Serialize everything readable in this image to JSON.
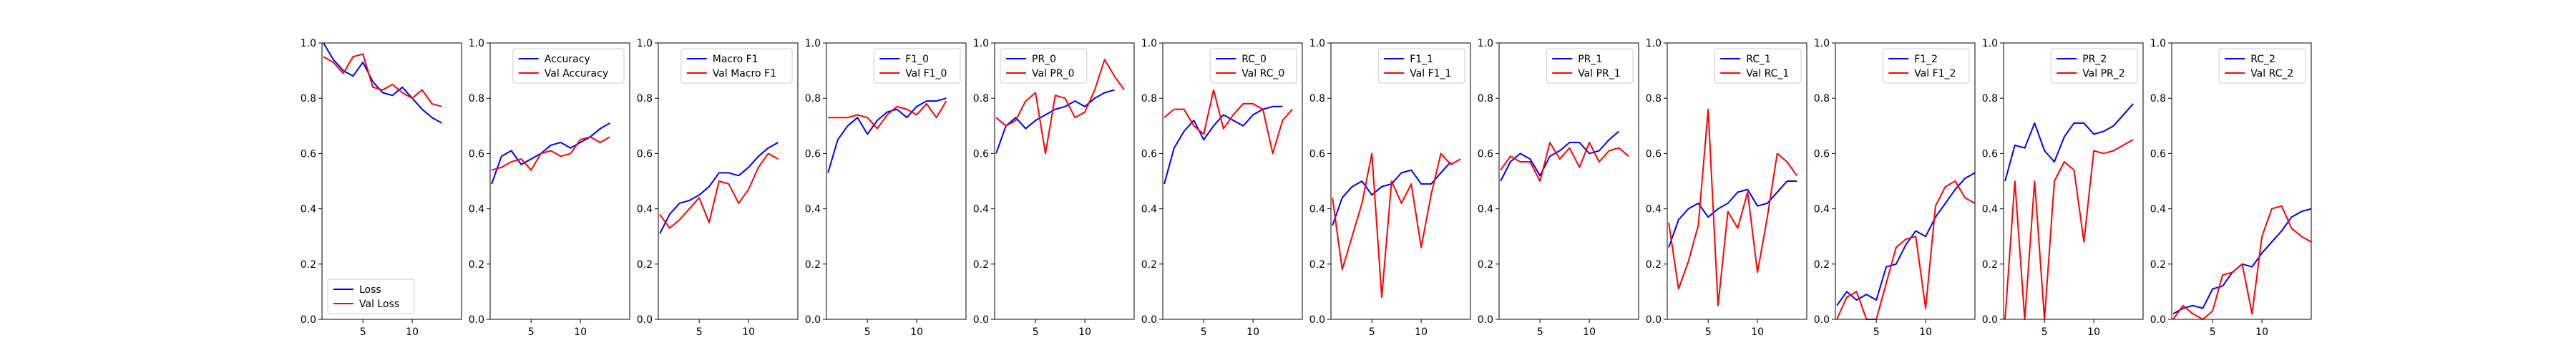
{
  "figure": {
    "colors": {
      "train": "#0000ff",
      "val": "#ff0000"
    }
  },
  "chart_data": [
    {
      "type": "line",
      "x": [
        1,
        2,
        3,
        4,
        5,
        6,
        7,
        8,
        9,
        10,
        11,
        12,
        13,
        14,
        15
      ],
      "xticks": [
        5,
        10
      ],
      "ylim": [
        0.0,
        1.0
      ],
      "yticks": [
        0.0,
        0.2,
        0.4,
        0.6,
        0.8,
        1.0
      ],
      "legend": "lower-left",
      "series": [
        {
          "name": "Loss",
          "color": "#0000ff",
          "values": [
            1.0,
            0.94,
            0.9,
            0.88,
            0.93,
            0.86,
            0.82,
            0.81,
            0.84,
            0.8,
            0.76,
            0.73,
            0.71,
            null,
            null
          ]
        },
        {
          "name": "Val Loss",
          "color": "#ff0000",
          "values": [
            0.95,
            0.93,
            0.89,
            0.95,
            0.96,
            0.84,
            0.83,
            0.85,
            0.82,
            0.8,
            0.83,
            0.78,
            0.77,
            null,
            null
          ]
        }
      ]
    },
    {
      "type": "line",
      "x": [
        1,
        2,
        3,
        4,
        5,
        6,
        7,
        8,
        9,
        10,
        11,
        12,
        13,
        14,
        15
      ],
      "xticks": [
        5,
        10
      ],
      "ylim": [
        0.0,
        1.0
      ],
      "yticks": [
        0.0,
        0.2,
        0.4,
        0.6,
        0.8,
        1.0
      ],
      "legend": "top-right",
      "series": [
        {
          "name": "Accuracy",
          "color": "#0000ff",
          "values": [
            0.49,
            0.59,
            0.61,
            0.56,
            0.58,
            0.6,
            0.63,
            0.64,
            0.62,
            0.64,
            0.66,
            0.69,
            0.71,
            null,
            null
          ]
        },
        {
          "name": "Val Accuracy",
          "color": "#ff0000",
          "values": [
            0.54,
            0.55,
            0.57,
            0.58,
            0.54,
            0.6,
            0.61,
            0.59,
            0.6,
            0.65,
            0.66,
            0.64,
            0.66,
            null,
            null
          ]
        }
      ]
    },
    {
      "type": "line",
      "x": [
        1,
        2,
        3,
        4,
        5,
        6,
        7,
        8,
        9,
        10,
        11,
        12,
        13,
        14,
        15
      ],
      "xticks": [
        5,
        10
      ],
      "ylim": [
        0.0,
        1.0
      ],
      "yticks": [
        0.0,
        0.2,
        0.4,
        0.6,
        0.8,
        1.0
      ],
      "legend": "top-right",
      "series": [
        {
          "name": "Macro F1",
          "color": "#0000ff",
          "values": [
            0.31,
            0.38,
            0.42,
            0.43,
            0.45,
            0.48,
            0.53,
            0.53,
            0.52,
            0.55,
            0.59,
            0.62,
            0.64,
            null,
            null
          ]
        },
        {
          "name": "Val Macro F1",
          "color": "#ff0000",
          "values": [
            0.38,
            0.33,
            0.36,
            0.4,
            0.44,
            0.35,
            0.5,
            0.49,
            0.42,
            0.47,
            0.55,
            0.6,
            0.58,
            null,
            null
          ]
        }
      ]
    },
    {
      "type": "line",
      "x": [
        1,
        2,
        3,
        4,
        5,
        6,
        7,
        8,
        9,
        10,
        11,
        12,
        13,
        14,
        15
      ],
      "xticks": [
        5,
        10
      ],
      "ylim": [
        0.0,
        1.0
      ],
      "yticks": [
        0.0,
        0.2,
        0.4,
        0.6,
        0.8,
        1.0
      ],
      "legend": "top-right",
      "series": [
        {
          "name": "F1_0",
          "color": "#0000ff",
          "values": [
            0.53,
            0.65,
            0.7,
            0.73,
            0.67,
            0.72,
            0.75,
            0.76,
            0.73,
            0.77,
            0.79,
            0.79,
            0.8,
            null,
            null
          ]
        },
        {
          "name": "Val F1_0",
          "color": "#ff0000",
          "values": [
            0.73,
            0.73,
            0.73,
            0.74,
            0.73,
            0.69,
            0.74,
            0.77,
            0.76,
            0.74,
            0.78,
            0.73,
            0.79,
            null,
            null
          ]
        }
      ]
    },
    {
      "type": "line",
      "x": [
        1,
        2,
        3,
        4,
        5,
        6,
        7,
        8,
        9,
        10,
        11,
        12,
        13,
        14,
        15
      ],
      "xticks": [
        5,
        10
      ],
      "ylim": [
        0.0,
        1.0
      ],
      "yticks": [
        0.0,
        0.2,
        0.4,
        0.6,
        0.8,
        1.0
      ],
      "legend": "top-left",
      "series": [
        {
          "name": "PR_0",
          "color": "#0000ff",
          "values": [
            0.6,
            0.7,
            0.73,
            0.69,
            0.72,
            0.74,
            0.76,
            0.77,
            0.79,
            0.77,
            0.8,
            0.82,
            0.83,
            null,
            null
          ]
        },
        {
          "name": "Val PR_0",
          "color": "#ff0000",
          "values": [
            0.73,
            0.7,
            0.72,
            0.79,
            0.82,
            0.6,
            0.81,
            0.8,
            0.73,
            0.75,
            0.83,
            0.94,
            0.88,
            0.83,
            null
          ]
        }
      ]
    },
    {
      "type": "line",
      "x": [
        1,
        2,
        3,
        4,
        5,
        6,
        7,
        8,
        9,
        10,
        11,
        12,
        13,
        14,
        15
      ],
      "xticks": [
        5,
        10
      ],
      "ylim": [
        0.0,
        1.0
      ],
      "yticks": [
        0.0,
        0.2,
        0.4,
        0.6,
        0.8,
        1.0
      ],
      "legend": "top-right",
      "series": [
        {
          "name": "RC_0",
          "color": "#0000ff",
          "values": [
            0.49,
            0.62,
            0.68,
            0.72,
            0.65,
            0.7,
            0.74,
            0.72,
            0.7,
            0.74,
            0.76,
            0.77,
            0.77,
            null,
            null
          ]
        },
        {
          "name": "Val RC_0",
          "color": "#ff0000",
          "values": [
            0.73,
            0.76,
            0.76,
            0.7,
            0.67,
            0.83,
            0.69,
            0.74,
            0.78,
            0.78,
            0.76,
            0.6,
            0.72,
            0.76,
            null
          ]
        }
      ]
    },
    {
      "type": "line",
      "x": [
        1,
        2,
        3,
        4,
        5,
        6,
        7,
        8,
        9,
        10,
        11,
        12,
        13,
        14,
        15
      ],
      "xticks": [
        5,
        10
      ],
      "ylim": [
        0.0,
        1.0
      ],
      "yticks": [
        0.0,
        0.2,
        0.4,
        0.6,
        0.8,
        1.0
      ],
      "legend": "top-right",
      "series": [
        {
          "name": "F1_1",
          "color": "#0000ff",
          "values": [
            0.34,
            0.44,
            0.48,
            0.5,
            0.45,
            0.48,
            0.49,
            0.53,
            0.54,
            0.49,
            0.49,
            0.53,
            0.57,
            null,
            null
          ]
        },
        {
          "name": "Val F1_1",
          "color": "#ff0000",
          "values": [
            0.44,
            0.18,
            0.3,
            0.42,
            0.6,
            0.08,
            0.5,
            0.42,
            0.49,
            0.26,
            0.45,
            0.6,
            0.56,
            0.58,
            null
          ]
        }
      ]
    },
    {
      "type": "line",
      "x": [
        1,
        2,
        3,
        4,
        5,
        6,
        7,
        8,
        9,
        10,
        11,
        12,
        13,
        14,
        15
      ],
      "xticks": [
        5,
        10
      ],
      "ylim": [
        0.0,
        1.0
      ],
      "yticks": [
        0.0,
        0.2,
        0.4,
        0.6,
        0.8,
        1.0
      ],
      "legend": "top-right",
      "series": [
        {
          "name": "PR_1",
          "color": "#0000ff",
          "values": [
            0.5,
            0.57,
            0.6,
            0.58,
            0.52,
            0.59,
            0.61,
            0.64,
            0.64,
            0.6,
            0.61,
            0.65,
            0.68,
            null,
            null
          ]
        },
        {
          "name": "Val PR_1",
          "color": "#ff0000",
          "values": [
            0.54,
            0.59,
            0.57,
            0.57,
            0.5,
            0.64,
            0.58,
            0.62,
            0.55,
            0.64,
            0.57,
            0.61,
            0.62,
            0.59,
            null
          ]
        }
      ]
    },
    {
      "type": "line",
      "x": [
        1,
        2,
        3,
        4,
        5,
        6,
        7,
        8,
        9,
        10,
        11,
        12,
        13,
        14,
        15
      ],
      "xticks": [
        5,
        10
      ],
      "ylim": [
        0.0,
        1.0
      ],
      "yticks": [
        0.0,
        0.2,
        0.4,
        0.6,
        0.8,
        1.0
      ],
      "legend": "top-right",
      "series": [
        {
          "name": "RC_1",
          "color": "#0000ff",
          "values": [
            0.26,
            0.36,
            0.4,
            0.42,
            0.37,
            0.4,
            0.42,
            0.46,
            0.47,
            0.41,
            0.42,
            0.46,
            0.5,
            0.5,
            null
          ]
        },
        {
          "name": "Val RC_1",
          "color": "#ff0000",
          "values": [
            0.35,
            0.11,
            0.21,
            0.34,
            0.76,
            0.05,
            0.39,
            0.33,
            0.46,
            0.17,
            0.37,
            0.6,
            0.57,
            0.52,
            null
          ]
        }
      ]
    },
    {
      "type": "line",
      "x": [
        1,
        2,
        3,
        4,
        5,
        6,
        7,
        8,
        9,
        10,
        11,
        12,
        13,
        14,
        15
      ],
      "xticks": [
        5,
        10
      ],
      "ylim": [
        0.0,
        1.0
      ],
      "yticks": [
        0.0,
        0.2,
        0.4,
        0.6,
        0.8,
        1.0
      ],
      "legend": "top-right",
      "series": [
        {
          "name": "F1_2",
          "color": "#0000ff",
          "values": [
            0.05,
            0.1,
            0.07,
            0.09,
            0.07,
            0.19,
            0.2,
            0.27,
            0.32,
            0.3,
            0.37,
            0.42,
            0.47,
            0.51,
            0.53
          ]
        },
        {
          "name": "Val F1_2",
          "color": "#ff0000",
          "values": [
            0.0,
            0.08,
            0.1,
            0.0,
            0.0,
            0.13,
            0.26,
            0.29,
            0.3,
            0.04,
            0.41,
            0.48,
            0.5,
            0.44,
            0.42
          ]
        }
      ]
    },
    {
      "type": "line",
      "x": [
        1,
        2,
        3,
        4,
        5,
        6,
        7,
        8,
        9,
        10,
        11,
        12,
        13,
        14,
        15
      ],
      "xticks": [
        5,
        10
      ],
      "ylim": [
        0.0,
        1.0
      ],
      "yticks": [
        0.0,
        0.2,
        0.4,
        0.6,
        0.8,
        1.0
      ],
      "legend": "top-right",
      "series": [
        {
          "name": "PR_2",
          "color": "#0000ff",
          "values": [
            0.5,
            0.63,
            0.62,
            0.71,
            0.61,
            0.57,
            0.66,
            0.71,
            0.71,
            0.67,
            0.68,
            0.7,
            0.74,
            0.78,
            null
          ]
        },
        {
          "name": "Val PR_2",
          "color": "#ff0000",
          "values": [
            0.0,
            0.5,
            0.0,
            0.5,
            0.0,
            0.5,
            0.57,
            0.54,
            0.28,
            0.61,
            0.6,
            0.61,
            0.63,
            0.65,
            null
          ]
        }
      ]
    },
    {
      "type": "line",
      "x": [
        1,
        2,
        3,
        4,
        5,
        6,
        7,
        8,
        9,
        10,
        11,
        12,
        13,
        14,
        15
      ],
      "xticks": [
        5,
        10
      ],
      "ylim": [
        0.0,
        1.0
      ],
      "yticks": [
        0.0,
        0.2,
        0.4,
        0.6,
        0.8,
        1.0
      ],
      "legend": "top-right",
      "series": [
        {
          "name": "RC_2",
          "color": "#0000ff",
          "values": [
            0.02,
            0.04,
            0.05,
            0.04,
            0.11,
            0.12,
            0.17,
            0.2,
            0.19,
            0.24,
            0.28,
            0.32,
            0.37,
            0.39,
            0.4
          ]
        },
        {
          "name": "Val RC_2",
          "color": "#ff0000",
          "values": [
            0.0,
            0.05,
            0.02,
            0.0,
            0.03,
            0.16,
            0.17,
            0.2,
            0.02,
            0.3,
            0.4,
            0.41,
            0.33,
            0.3,
            0.28
          ]
        }
      ]
    }
  ]
}
